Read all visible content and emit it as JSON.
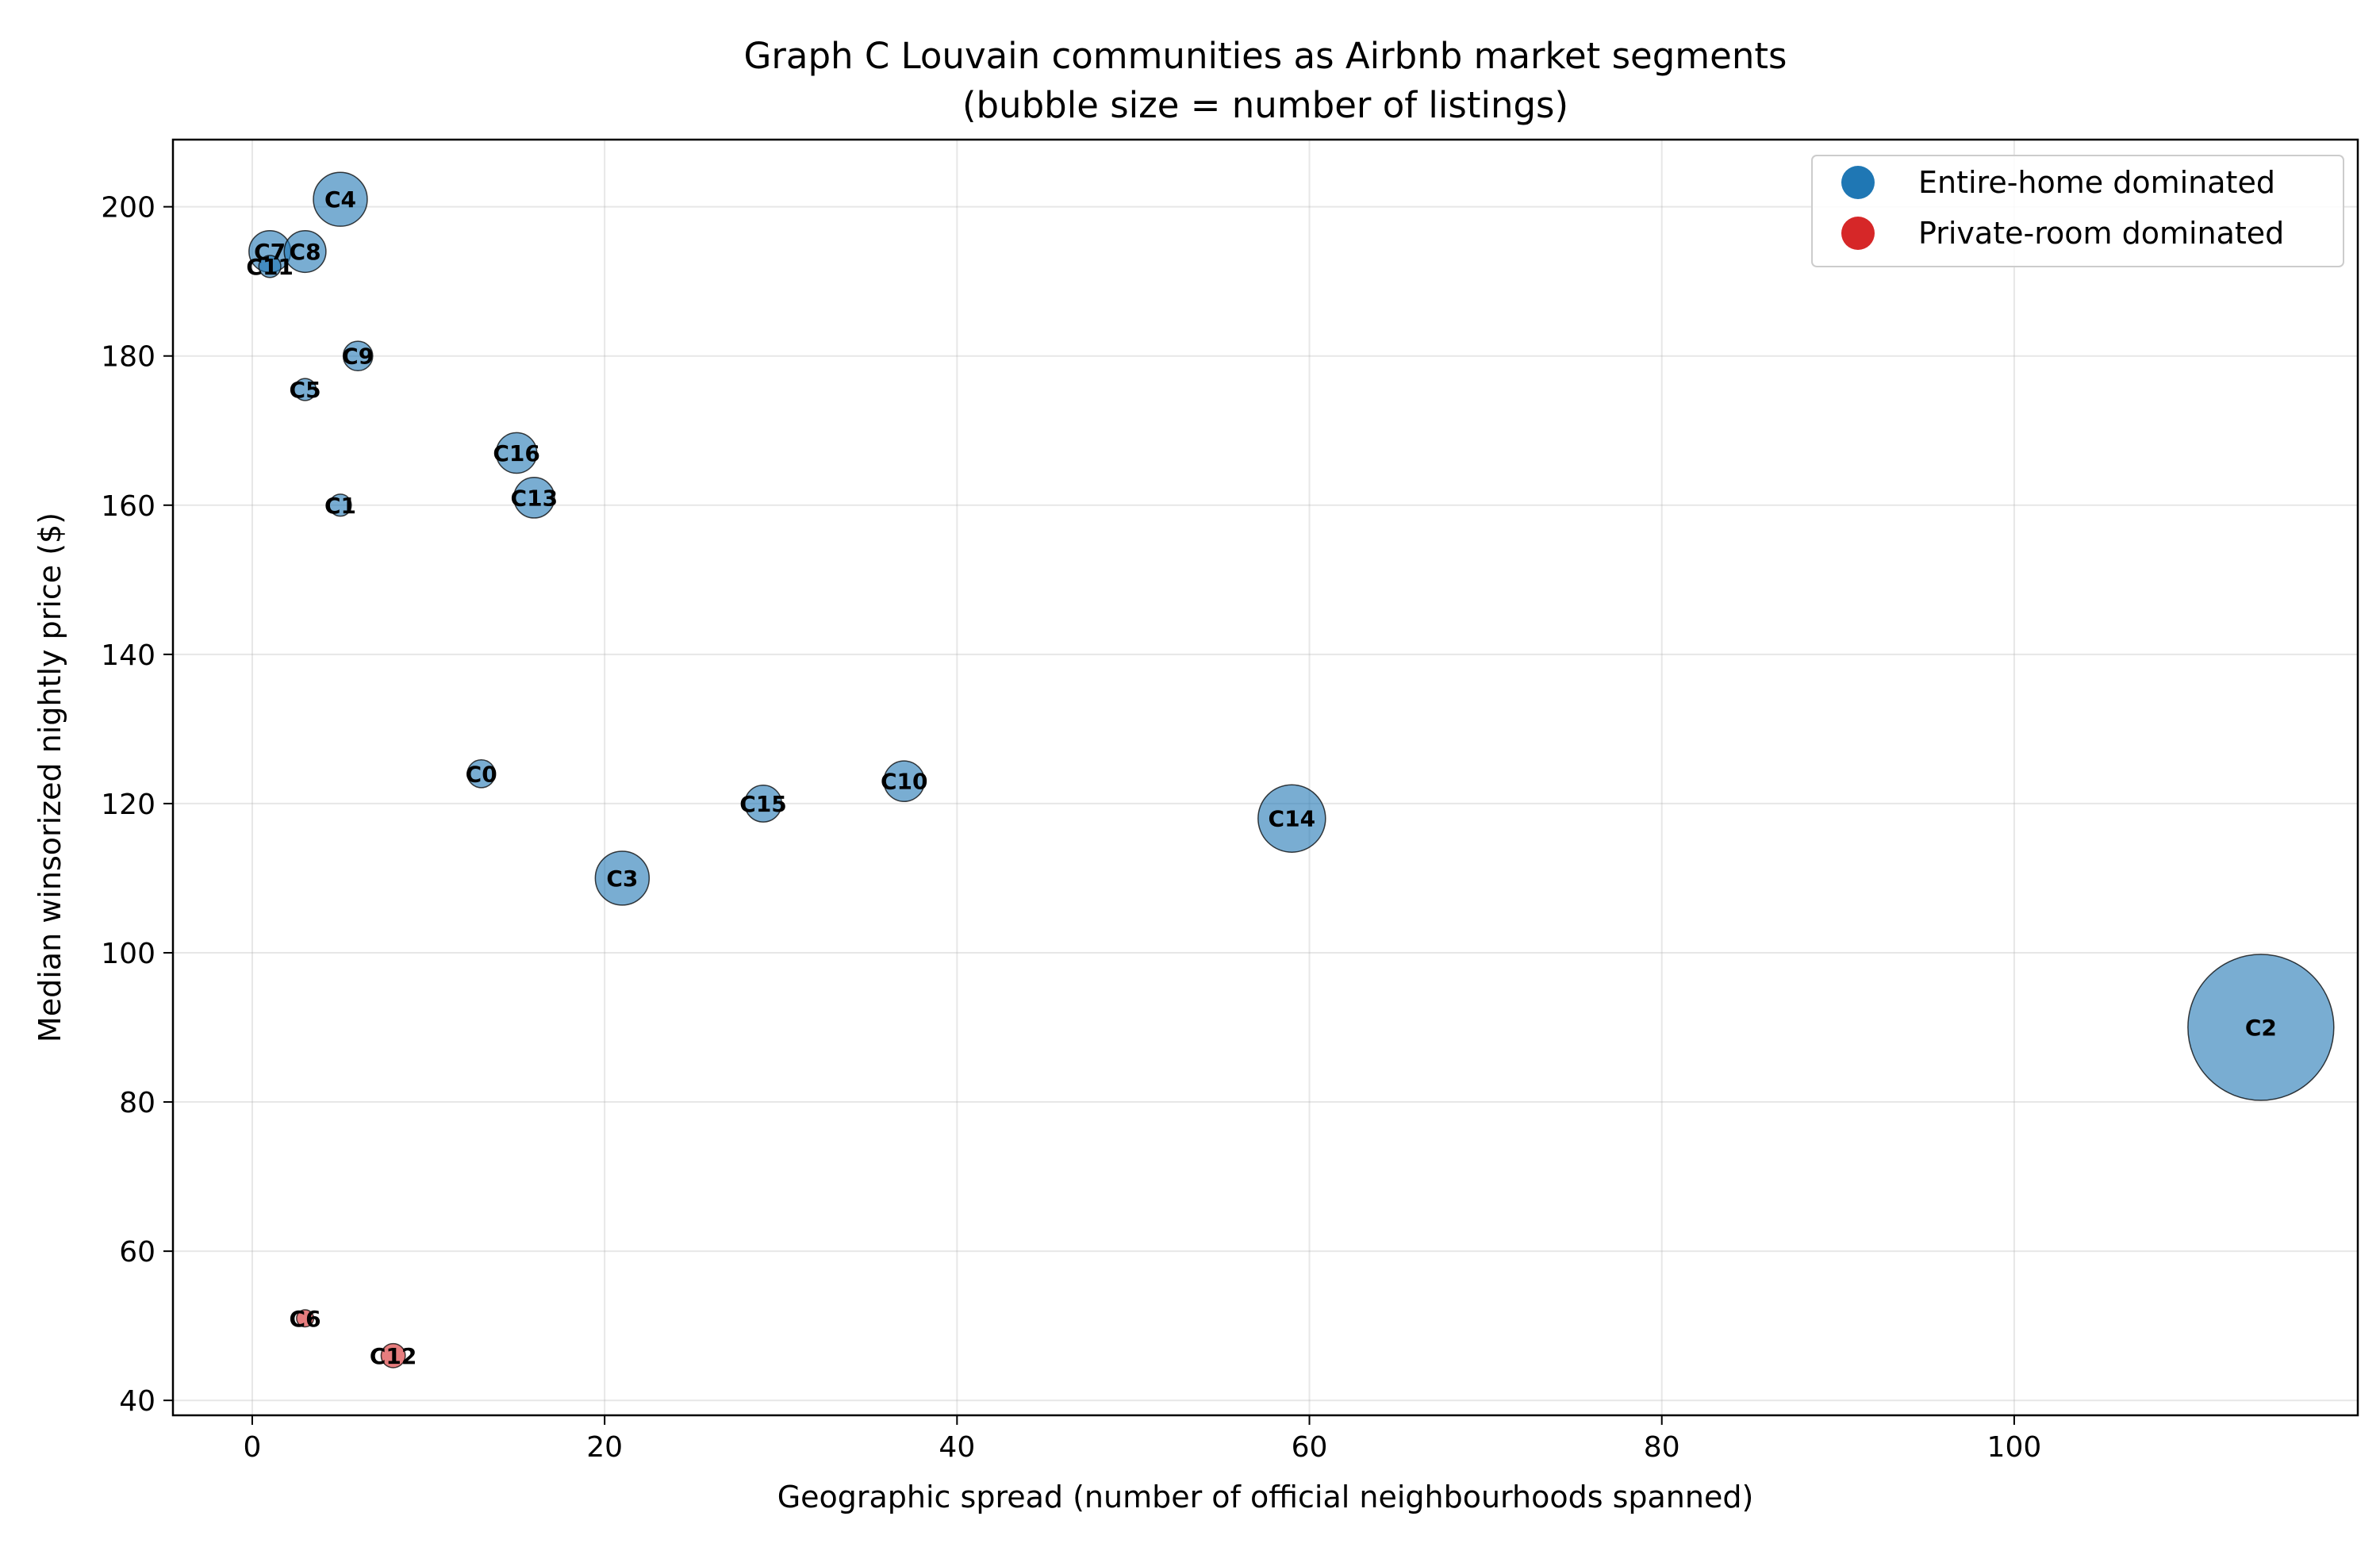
{
  "chart_data": {
    "type": "scatter",
    "title": "Graph C Louvain communities as Airbnb market segments",
    "subtitle": "(bubble size = number of listings)",
    "xlabel": "Geographic spread (number of official neighbourhoods spanned)",
    "ylabel": "Median winsorized nightly price ($)",
    "xlim": [
      -4.5,
      119.5
    ],
    "ylim": [
      38,
      209
    ],
    "xticks": [
      0,
      20,
      40,
      60,
      80,
      100
    ],
    "yticks": [
      40,
      60,
      80,
      100,
      120,
      140,
      160,
      180,
      200
    ],
    "grid": true,
    "legend_position": "top-right",
    "series": [
      {
        "name": "Entire-home dominated",
        "color": "#1f77b4"
      },
      {
        "name": "Private-room dominated",
        "color": "#d62728"
      }
    ],
    "points": [
      {
        "label": "C0",
        "x": 13,
        "y": 124,
        "size": 8,
        "segment": 0
      },
      {
        "label": "C1",
        "x": 5,
        "y": 160,
        "size": 5,
        "segment": 0
      },
      {
        "label": "C2",
        "x": 114,
        "y": 90,
        "size": 220,
        "segment": 0
      },
      {
        "label": "C3",
        "x": 21,
        "y": 110,
        "size": 30,
        "segment": 0
      },
      {
        "label": "C4",
        "x": 5,
        "y": 201,
        "size": 30,
        "segment": 0
      },
      {
        "label": "C5",
        "x": 3,
        "y": 175.5,
        "size": 5,
        "segment": 0
      },
      {
        "label": "C6",
        "x": 3,
        "y": 51,
        "size": 3,
        "segment": 1
      },
      {
        "label": "C7",
        "x": 1,
        "y": 194,
        "size": 18,
        "segment": 0
      },
      {
        "label": "C8",
        "x": 3,
        "y": 194,
        "size": 18,
        "segment": 0
      },
      {
        "label": "C9",
        "x": 6,
        "y": 180,
        "size": 9,
        "segment": 0
      },
      {
        "label": "C10",
        "x": 37,
        "y": 123,
        "size": 17,
        "segment": 0
      },
      {
        "label": "C11",
        "x": 1,
        "y": 192,
        "size": 5,
        "segment": 0
      },
      {
        "label": "C12",
        "x": 8,
        "y": 46,
        "size": 6,
        "segment": 1
      },
      {
        "label": "C13",
        "x": 16,
        "y": 161,
        "size": 17,
        "segment": 0
      },
      {
        "label": "C14",
        "x": 59,
        "y": 118,
        "size": 47,
        "segment": 0
      },
      {
        "label": "C15",
        "x": 29,
        "y": 120,
        "size": 14,
        "segment": 0
      },
      {
        "label": "C16",
        "x": 15,
        "y": 167,
        "size": 17,
        "segment": 0
      }
    ]
  }
}
